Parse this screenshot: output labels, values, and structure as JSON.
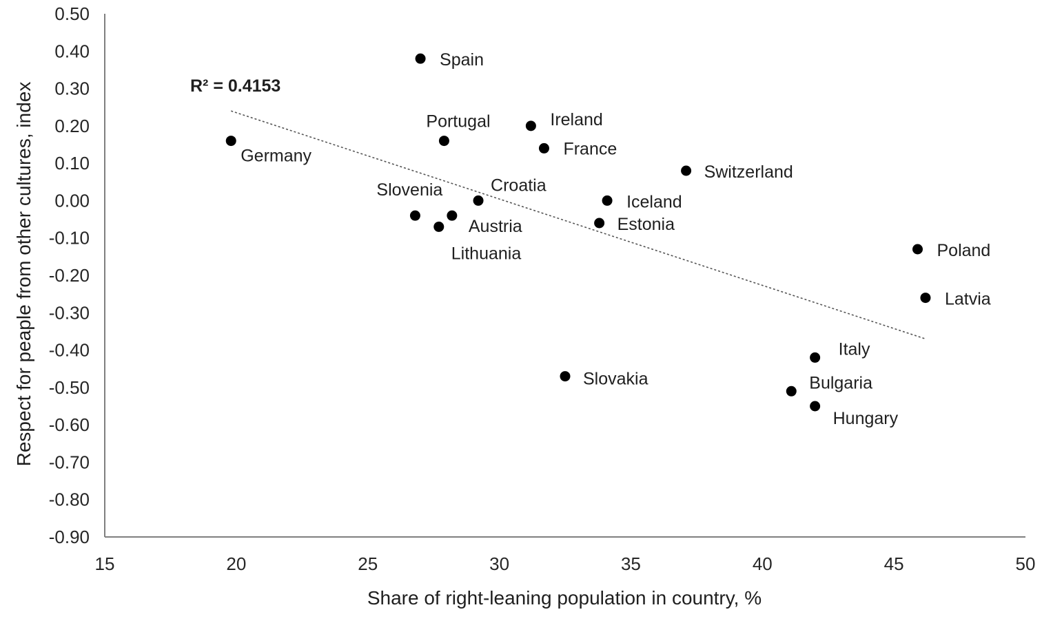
{
  "chart_data": {
    "type": "scatter",
    "title": "",
    "xlabel": "Share of right-leaning population in country, %",
    "ylabel": "Respect for peaple from other cultures, index",
    "xlim": [
      15,
      50
    ],
    "ylim": [
      -0.9,
      0.5
    ],
    "x_ticks": [
      "15",
      "20",
      "25",
      "30",
      "35",
      "40",
      "45",
      "50"
    ],
    "y_ticks": [
      "0.50",
      "0.40",
      "0.30",
      "0.20",
      "0.10",
      "0.00",
      "-0.10",
      "-0.20",
      "-0.30",
      "-0.40",
      "-0.50",
      "-0.60",
      "-0.70",
      "-0.80",
      "-0.90"
    ],
    "points": [
      {
        "label": "Germany",
        "x": 19.8,
        "y": 0.16
      },
      {
        "label": "Spain",
        "x": 27.0,
        "y": 0.38
      },
      {
        "label": "Portugal",
        "x": 27.9,
        "y": 0.16
      },
      {
        "label": "Ireland",
        "x": 31.2,
        "y": 0.2
      },
      {
        "label": "France",
        "x": 31.7,
        "y": 0.14
      },
      {
        "label": "Switzerland",
        "x": 37.1,
        "y": 0.08
      },
      {
        "label": "Slovenia",
        "x": 26.8,
        "y": -0.04
      },
      {
        "label": "Croatia",
        "x": 29.2,
        "y": 0.0
      },
      {
        "label": "Austria",
        "x": 28.2,
        "y": -0.04
      },
      {
        "label": "Lithuania",
        "x": 27.7,
        "y": -0.07
      },
      {
        "label": "Iceland",
        "x": 34.1,
        "y": 0.0
      },
      {
        "label": "Estonia",
        "x": 33.8,
        "y": -0.06
      },
      {
        "label": "Poland",
        "x": 45.9,
        "y": -0.13
      },
      {
        "label": "Latvia",
        "x": 46.2,
        "y": -0.26
      },
      {
        "label": "Italy",
        "x": 42.0,
        "y": -0.42
      },
      {
        "label": "Slovakia",
        "x": 32.5,
        "y": -0.47
      },
      {
        "label": "Bulgaria",
        "x": 41.1,
        "y": -0.51
      },
      {
        "label": "Hungary",
        "x": 42.0,
        "y": -0.55
      }
    ],
    "trendline": {
      "x": [
        19.8,
        46.2
      ],
      "y": [
        0.24,
        -0.37
      ]
    },
    "annotation": "R² = 0.4153"
  }
}
